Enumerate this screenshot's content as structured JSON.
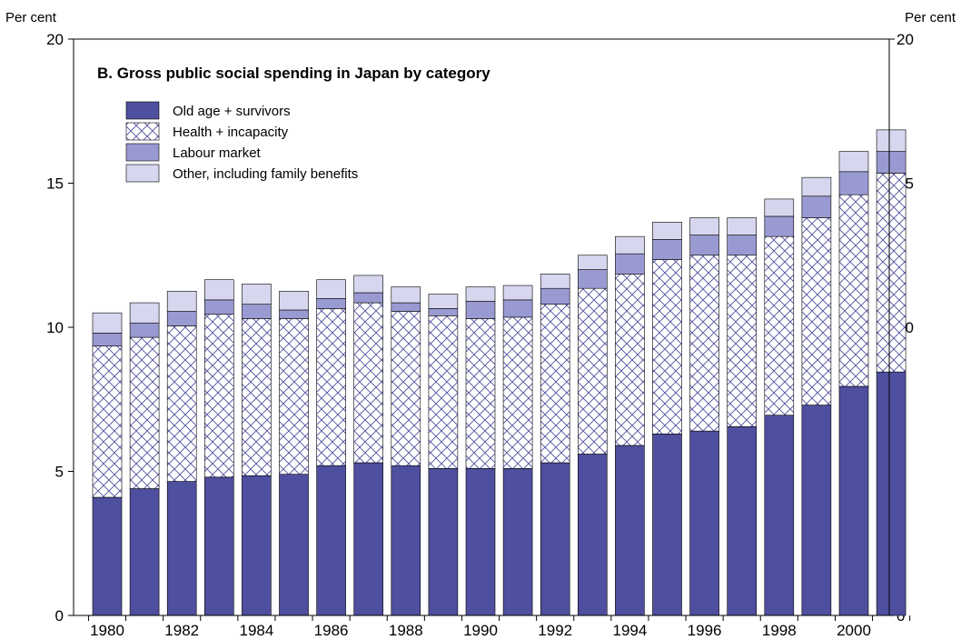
{
  "chart_data": {
    "type": "bar",
    "stacked": true,
    "title": "B.  Gross public social spending in Japan by category",
    "ylabel_left": "Per cent",
    "ylabel_right": "Per cent",
    "ylim": [
      0,
      20
    ],
    "yticks": [
      0,
      5,
      10,
      15,
      20
    ],
    "x_tick_labels": [
      "1980",
      "1982",
      "1984",
      "1986",
      "1988",
      "1990",
      "1992",
      "1994",
      "1996",
      "1998",
      "2000"
    ],
    "categories": [
      "1980",
      "1981",
      "1982",
      "1983",
      "1984",
      "1985",
      "1986",
      "1987",
      "1988",
      "1989",
      "1990",
      "1991",
      "1992",
      "1993",
      "1994",
      "1995",
      "1996",
      "1997",
      "1998",
      "1999",
      "2000",
      "2001"
    ],
    "legend_position": "top-left",
    "series": [
      {
        "name": "Old age + survivors",
        "fill": "#4f4f9f",
        "pattern": "solid",
        "values": [
          4.1,
          4.4,
          4.65,
          4.8,
          4.85,
          4.9,
          5.2,
          5.3,
          5.2,
          5.1,
          5.1,
          5.1,
          5.3,
          5.6,
          5.9,
          6.3,
          6.4,
          6.55,
          6.95,
          7.3,
          7.95,
          8.45
        ]
      },
      {
        "name": "Health + incapacity",
        "fill": "#ffffff",
        "pattern": "crosshatch",
        "hatch_color": "#4f4f9f",
        "values": [
          5.25,
          5.25,
          5.4,
          5.65,
          5.45,
          5.4,
          5.45,
          5.55,
          5.35,
          5.3,
          5.2,
          5.25,
          5.5,
          5.75,
          5.95,
          6.05,
          6.1,
          5.95,
          6.2,
          6.5,
          6.65,
          6.9
        ]
      },
      {
        "name": "Labour market",
        "fill": "#9a9ad2",
        "pattern": "solid",
        "values": [
          0.45,
          0.5,
          0.5,
          0.5,
          0.5,
          0.3,
          0.35,
          0.35,
          0.3,
          0.25,
          0.6,
          0.6,
          0.55,
          0.65,
          0.7,
          0.7,
          0.7,
          0.7,
          0.7,
          0.75,
          0.8,
          0.75
        ]
      },
      {
        "name": "Other, including family benefits",
        "fill": "#d6d6ee",
        "pattern": "solid",
        "values": [
          0.7,
          0.7,
          0.7,
          0.7,
          0.7,
          0.65,
          0.65,
          0.6,
          0.55,
          0.5,
          0.5,
          0.5,
          0.5,
          0.5,
          0.6,
          0.6,
          0.6,
          0.6,
          0.6,
          0.65,
          0.7,
          0.75
        ]
      }
    ]
  }
}
